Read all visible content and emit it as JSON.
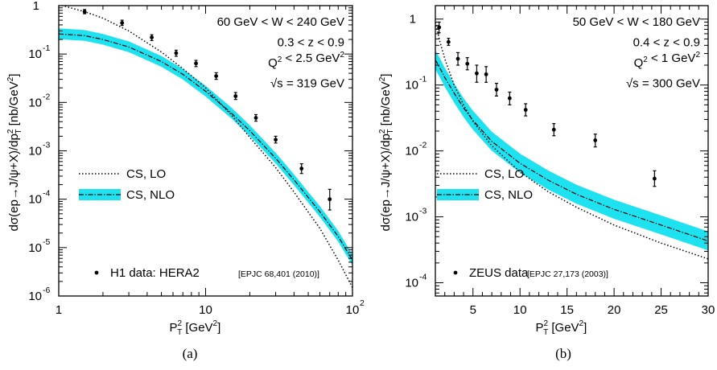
{
  "chart_data": [
    {
      "id": "a",
      "type": "scatter",
      "panel_label": "(a)",
      "xscale": "log",
      "yscale": "log",
      "xlim": [
        1,
        100
      ],
      "ylim": [
        1e-06,
        1
      ],
      "x_ticks": [
        {
          "v": 1,
          "base": "1",
          "exp": ""
        },
        {
          "v": 10,
          "base": "10",
          "exp": ""
        },
        {
          "v": 100,
          "base": "10",
          "exp": "2"
        }
      ],
      "y_ticks": [
        {
          "v": 1,
          "base": "1",
          "exp": ""
        },
        {
          "v": 0.1,
          "base": "10",
          "exp": "-1"
        },
        {
          "v": 0.01,
          "base": "10",
          "exp": "-2"
        },
        {
          "v": 0.001,
          "base": "10",
          "exp": "-3"
        },
        {
          "v": 0.0001,
          "base": "10",
          "exp": "-4"
        },
        {
          "v": 1e-05,
          "base": "10",
          "exp": "-5"
        },
        {
          "v": 1e-06,
          "base": "10",
          "exp": "-6"
        }
      ],
      "xlabel": {
        "main": "P",
        "sub": "T",
        "sup": "2",
        "unit": " [GeV",
        "unit_sup": "2",
        "end": "]"
      },
      "ylabel": "dσ(ep→J/ψ+X)/dp²T [nb/GeV²]",
      "annotations": [
        "60 GeV < W < 240 GeV",
        "0.3 < z < 0.9",
        "Q² < 2.5 GeV²",
        "√s = 319 GeV"
      ],
      "legend": [
        "CS, LO",
        "CS, NLO"
      ],
      "data_label": "H1 data: HERA2",
      "data_ref": "[EPJC 68,401 (2010)]",
      "data_points": [
        {
          "x": 1.5,
          "y": 0.75,
          "lo": 0.68,
          "hi": 0.83
        },
        {
          "x": 2.7,
          "y": 0.44,
          "lo": 0.39,
          "hi": 0.5
        },
        {
          "x": 4.3,
          "y": 0.22,
          "lo": 0.19,
          "hi": 0.25
        },
        {
          "x": 6.3,
          "y": 0.105,
          "lo": 0.09,
          "hi": 0.12
        },
        {
          "x": 8.6,
          "y": 0.064,
          "lo": 0.055,
          "hi": 0.074
        },
        {
          "x": 11.8,
          "y": 0.035,
          "lo": 0.03,
          "hi": 0.041
        },
        {
          "x": 16,
          "y": 0.0135,
          "lo": 0.0115,
          "hi": 0.016
        },
        {
          "x": 22,
          "y": 0.0048,
          "lo": 0.0041,
          "hi": 0.0056
        },
        {
          "x": 30,
          "y": 0.0017,
          "lo": 0.00145,
          "hi": 0.002
        },
        {
          "x": 45,
          "y": 0.00043,
          "lo": 0.00034,
          "hi": 0.00054
        },
        {
          "x": 70,
          "y": 0.0001,
          "lo": 6e-05,
          "hi": 0.00016
        }
      ],
      "lo_curve": [
        {
          "x": 1,
          "y": 1.05
        },
        {
          "x": 1.5,
          "y": 0.75
        },
        {
          "x": 2,
          "y": 0.55
        },
        {
          "x": 3,
          "y": 0.3
        },
        {
          "x": 5,
          "y": 0.11
        },
        {
          "x": 7,
          "y": 0.05
        },
        {
          "x": 10,
          "y": 0.02
        },
        {
          "x": 15,
          "y": 0.0055
        },
        {
          "x": 20,
          "y": 0.0019
        },
        {
          "x": 30,
          "y": 0.00045
        },
        {
          "x": 40,
          "y": 0.00014
        },
        {
          "x": 60,
          "y": 2.5e-05
        },
        {
          "x": 80,
          "y": 5.5e-06
        },
        {
          "x": 100,
          "y": 1.5e-06
        }
      ],
      "nlo_curve": [
        {
          "x": 1,
          "y": 0.26
        },
        {
          "x": 1.5,
          "y": 0.24
        },
        {
          "x": 2,
          "y": 0.2
        },
        {
          "x": 3,
          "y": 0.14
        },
        {
          "x": 5,
          "y": 0.07
        },
        {
          "x": 7,
          "y": 0.038
        },
        {
          "x": 10,
          "y": 0.017
        },
        {
          "x": 15,
          "y": 0.006
        },
        {
          "x": 20,
          "y": 0.0026
        },
        {
          "x": 30,
          "y": 0.0007
        },
        {
          "x": 40,
          "y": 0.00025
        },
        {
          "x": 60,
          "y": 5.5e-05
        },
        {
          "x": 80,
          "y": 1.7e-05
        },
        {
          "x": 100,
          "y": 5.5e-06
        }
      ],
      "band_factor_lo": 0.78,
      "band_factor_hi": 1.3
    },
    {
      "id": "b",
      "type": "scatter",
      "panel_label": "(b)",
      "xscale": "linear",
      "yscale": "log",
      "xlim": [
        1,
        30
      ],
      "ylim": [
        6.3e-05,
        1.6
      ],
      "x_ticks": [
        {
          "v": 5,
          "base": "5",
          "exp": ""
        },
        {
          "v": 10,
          "base": "10",
          "exp": ""
        },
        {
          "v": 15,
          "base": "15",
          "exp": ""
        },
        {
          "v": 20,
          "base": "20",
          "exp": ""
        },
        {
          "v": 25,
          "base": "25",
          "exp": ""
        },
        {
          "v": 30,
          "base": "30",
          "exp": ""
        }
      ],
      "y_ticks": [
        {
          "v": 1,
          "base": "1",
          "exp": ""
        },
        {
          "v": 0.1,
          "base": "10",
          "exp": "-1"
        },
        {
          "v": 0.01,
          "base": "10",
          "exp": "-2"
        },
        {
          "v": 0.001,
          "base": "10",
          "exp": "-3"
        },
        {
          "v": 0.0001,
          "base": "10",
          "exp": "-4"
        }
      ],
      "xlabel": {
        "main": "P",
        "sub": "T",
        "sup": "2",
        "unit": " [GeV",
        "unit_sup": "2",
        "end": "]"
      },
      "ylabel": "dσ(ep→J/ψ+X)/dp²T [nb/GeV²]",
      "annotations": [
        "50 GeV < W < 180 GeV",
        "0.4 < z < 0.9",
        "Q² < 1 GeV²",
        "√s = 300 GeV"
      ],
      "legend": [
        "CS, LO",
        "CS, NLO"
      ],
      "data_label": "ZEUS data",
      "data_ref": "[EPJC 27,173 (2003)]",
      "data_points": [
        {
          "x": 1.4,
          "y": 0.75,
          "lo": 0.62,
          "hi": 0.9
        },
        {
          "x": 2.4,
          "y": 0.45,
          "lo": 0.4,
          "hi": 0.51
        },
        {
          "x": 3.4,
          "y": 0.25,
          "lo": 0.2,
          "hi": 0.31
        },
        {
          "x": 4.4,
          "y": 0.21,
          "lo": 0.17,
          "hi": 0.26
        },
        {
          "x": 5.4,
          "y": 0.15,
          "lo": 0.11,
          "hi": 0.2
        },
        {
          "x": 6.4,
          "y": 0.145,
          "lo": 0.11,
          "hi": 0.19
        },
        {
          "x": 7.5,
          "y": 0.085,
          "lo": 0.068,
          "hi": 0.106
        },
        {
          "x": 8.9,
          "y": 0.063,
          "lo": 0.05,
          "hi": 0.078
        },
        {
          "x": 10.6,
          "y": 0.042,
          "lo": 0.034,
          "hi": 0.052
        },
        {
          "x": 13.6,
          "y": 0.021,
          "lo": 0.017,
          "hi": 0.026
        },
        {
          "x": 18,
          "y": 0.0145,
          "lo": 0.0115,
          "hi": 0.018
        },
        {
          "x": 24.3,
          "y": 0.0038,
          "lo": 0.0029,
          "hi": 0.005
        }
      ],
      "lo_curve": [
        {
          "x": 1,
          "y": 0.9
        },
        {
          "x": 1.5,
          "y": 0.45
        },
        {
          "x": 2,
          "y": 0.25
        },
        {
          "x": 3,
          "y": 0.1
        },
        {
          "x": 4,
          "y": 0.05
        },
        {
          "x": 5,
          "y": 0.028
        },
        {
          "x": 7,
          "y": 0.012
        },
        {
          "x": 10,
          "y": 0.0048
        },
        {
          "x": 13,
          "y": 0.0024
        },
        {
          "x": 16,
          "y": 0.0014
        },
        {
          "x": 20,
          "y": 0.00075
        },
        {
          "x": 25,
          "y": 0.0004
        },
        {
          "x": 30,
          "y": 0.00023
        }
      ],
      "nlo_curve": [
        {
          "x": 1,
          "y": 0.24
        },
        {
          "x": 1.5,
          "y": 0.18
        },
        {
          "x": 2,
          "y": 0.13
        },
        {
          "x": 3,
          "y": 0.075
        },
        {
          "x": 4,
          "y": 0.045
        },
        {
          "x": 5,
          "y": 0.029
        },
        {
          "x": 7,
          "y": 0.014
        },
        {
          "x": 10,
          "y": 0.0065
        },
        {
          "x": 13,
          "y": 0.0036
        },
        {
          "x": 16,
          "y": 0.0022
        },
        {
          "x": 20,
          "y": 0.0013
        },
        {
          "x": 25,
          "y": 0.00075
        },
        {
          "x": 30,
          "y": 0.00043
        }
      ],
      "band_factor_lo": 0.72,
      "band_factor_hi": 1.4
    }
  ],
  "colors": {
    "band": "#1ee2f0",
    "ink": "#000000"
  }
}
